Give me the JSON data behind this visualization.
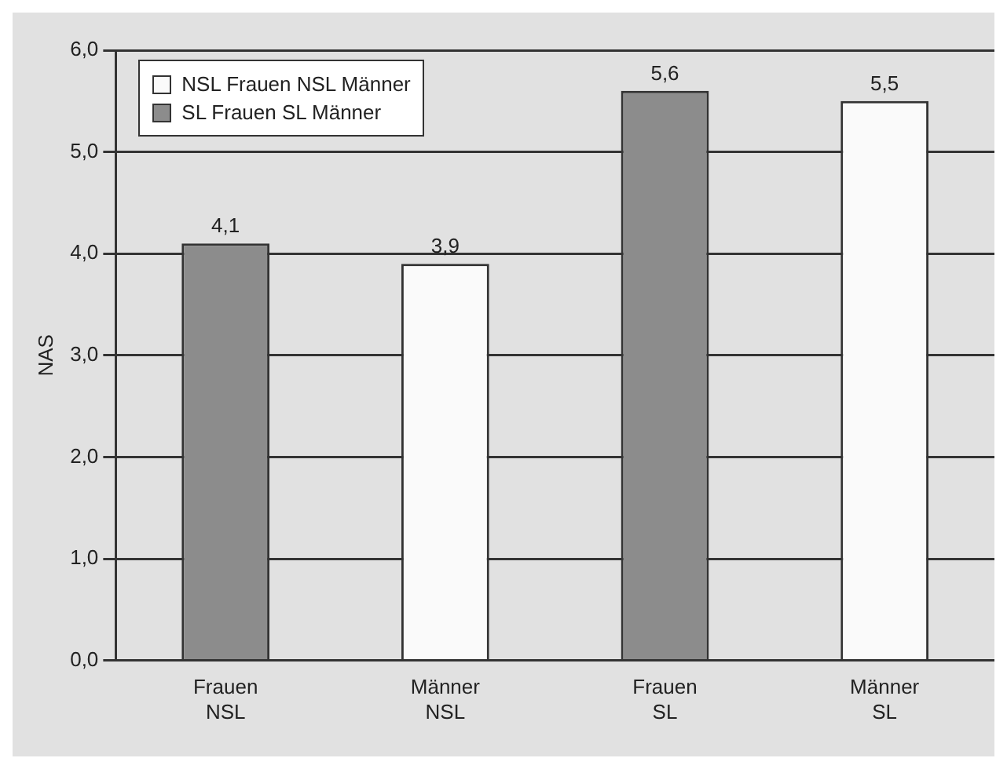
{
  "chart_data": {
    "type": "bar",
    "ylabel": "NAS",
    "categories": [
      "Frauen NSL",
      "Männer NSL",
      "Frauen SL",
      "Männer SL"
    ],
    "series": [
      {
        "name": "NSL Frauen NSL Männer",
        "color": "#fafafa",
        "values": [
          null,
          3.9,
          null,
          5.5
        ],
        "value_labels": [
          null,
          "3,9",
          null,
          "5,5"
        ]
      },
      {
        "name": "SL Frauen SL Männer",
        "color": "#8c8c8c",
        "values": [
          4.1,
          null,
          5.6,
          null
        ],
        "value_labels": [
          "4,1",
          null,
          "5,6",
          null
        ]
      }
    ],
    "ylim": [
      0,
      6
    ],
    "yticks": [
      {
        "value": 0,
        "label": "0,0"
      },
      {
        "value": 1,
        "label": "1,0"
      },
      {
        "value": 2,
        "label": "2,0"
      },
      {
        "value": 3,
        "label": "3,0"
      },
      {
        "value": 4,
        "label": "4,0"
      },
      {
        "value": 5,
        "label": "5,0"
      },
      {
        "value": 6,
        "label": "6,0"
      }
    ],
    "grid": "y",
    "legend": "top left"
  }
}
